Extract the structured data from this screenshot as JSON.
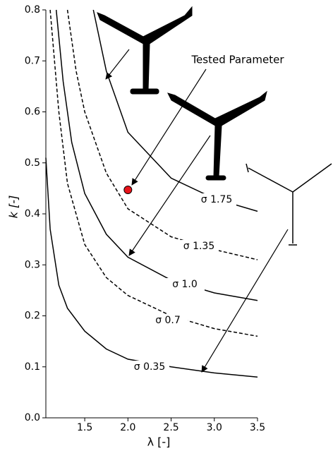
{
  "chart_data": {
    "type": "line",
    "xlabel": "λ [-]",
    "ylabel": "k [-]",
    "xlim": [
      1.05,
      3.5
    ],
    "ylim": [
      0,
      0.8
    ],
    "xticks": [
      1.5,
      {
        "value": 2,
        "label": "2.0"
      },
      2.5,
      {
        "value": 3,
        "label": "3.0"
      },
      3.5
    ],
    "yticks": [
      {
        "value": 0,
        "label": "0.0"
      },
      0.1,
      0.2,
      0.3,
      0.4,
      0.5,
      0.6,
      0.7,
      0.8
    ],
    "series": [
      {
        "name": "σ 0.35",
        "color": "#000000",
        "dashed": false,
        "x": [
          1.05,
          1.1,
          1.2,
          1.3,
          1.5,
          1.75,
          2.0,
          2.5,
          3.0,
          3.5
        ],
        "values": [
          0.51,
          0.37,
          0.26,
          0.215,
          0.17,
          0.135,
          0.115,
          0.1,
          0.088,
          0.08
        ]
      },
      {
        "name": "σ 0.7",
        "color": "#000000",
        "dashed": true,
        "x": [
          1.1,
          1.2,
          1.3,
          1.5,
          1.75,
          2.0,
          2.5,
          3.0,
          3.5
        ],
        "values": [
          0.8,
          0.6,
          0.46,
          0.34,
          0.275,
          0.24,
          0.2,
          0.175,
          0.16
        ]
      },
      {
        "name": "σ 1.0",
        "color": "#000000",
        "dashed": false,
        "x": [
          1.17,
          1.25,
          1.35,
          1.5,
          1.75,
          2.0,
          2.5,
          3.0,
          3.5
        ],
        "values": [
          0.8,
          0.66,
          0.54,
          0.44,
          0.36,
          0.315,
          0.27,
          0.245,
          0.23
        ]
      },
      {
        "name": "σ 1.35",
        "color": "#000000",
        "dashed": true,
        "x": [
          1.3,
          1.4,
          1.5,
          1.75,
          2.0,
          2.5,
          3.0,
          3.5
        ],
        "values": [
          0.8,
          0.68,
          0.6,
          0.48,
          0.41,
          0.355,
          0.33,
          0.31
        ]
      },
      {
        "name": "σ 1.75",
        "color": "#000000",
        "dashed": false,
        "x": [
          1.6,
          1.75,
          2.0,
          2.5,
          3.0,
          3.5
        ],
        "values": [
          0.8,
          0.68,
          0.56,
          0.47,
          0.43,
          0.405
        ]
      }
    ],
    "point": {
      "label": "Tested Parameter",
      "x": 2.0,
      "y": 0.447,
      "color": "#e8141b"
    }
  }
}
